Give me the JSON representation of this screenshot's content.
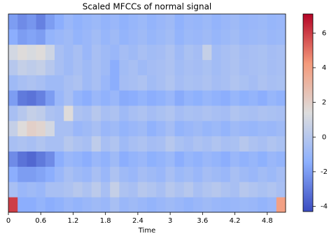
{
  "chart_data": {
    "type": "heatmap",
    "title": "Scaled MFCCs of normal signal",
    "x_label": "Time",
    "xlim": [
      0,
      5.14
    ],
    "xticks": [
      0,
      0.6,
      1.2,
      1.8,
      2.4,
      3,
      3.6,
      4.2,
      4.8
    ],
    "colormap": "coolwarm",
    "zlim": [
      -4.3,
      7.1
    ],
    "colorbar_ticks": [
      -4,
      -2,
      0,
      2,
      4,
      6
    ],
    "z": [
      [
        6,
        -1.5,
        -1.5,
        -1.2,
        -1.5,
        -1.3,
        -1,
        -1.2,
        -1,
        -0.8,
        -1,
        -0.5,
        -1,
        -0.8,
        -1,
        -1.2,
        -1,
        -0.8,
        -1,
        -1.2,
        -1,
        -0.8,
        -1,
        -1.1,
        -1,
        -0.9,
        -1,
        -1.2,
        -1,
        4
      ],
      [
        -0.5,
        -1,
        -0.8,
        -1,
        -0.5,
        -0.5,
        -0.3,
        0,
        -0.3,
        0.2,
        -0.5,
        0.5,
        -0.3,
        -0.5,
        0,
        -0.2,
        -0.5,
        0,
        -0.3,
        0,
        -0.5,
        -0.2,
        0,
        -0.3,
        -0.5,
        0,
        -0.2,
        -0.4,
        -0.2,
        -0.5
      ],
      [
        -1.5,
        -2,
        -2,
        -1.8,
        -1.5,
        -1,
        -0.5,
        -0.8,
        -1,
        -0.5,
        -1,
        -0.3,
        -0.8,
        -1,
        -0.6,
        -0.8,
        -1,
        -0.5,
        -0.9,
        -0.7,
        -1,
        -0.6,
        -0.8,
        -1,
        -0.5,
        -0.8,
        -1,
        -0.7,
        -0.9,
        -0.6
      ],
      [
        -2.5,
        -3.2,
        -3.5,
        -3,
        -2.5,
        -1.5,
        -1,
        -1.2,
        -1.5,
        -1,
        -1.3,
        -0.8,
        -1.5,
        -1.2,
        -1,
        -1.4,
        -1.2,
        -0.9,
        -1.5,
        -1.1,
        -1.3,
        -1,
        -1.2,
        -1.5,
        -1,
        -1.3,
        -1.1,
        -1.4,
        -1,
        -1.2
      ],
      [
        -0.5,
        -0.3,
        -0.5,
        -0.2,
        -0.5,
        -0.5,
        0,
        -0.3,
        -0.5,
        0.3,
        -0.5,
        -0.2,
        -0.8,
        -0.5,
        -0.3,
        -0.6,
        -0.5,
        0,
        -0.4,
        -0.6,
        -0.3,
        -0.5,
        -0.2,
        -0.5,
        -0.4,
        0,
        -0.3,
        -0.5,
        -0.2,
        -0.4
      ],
      [
        0.5,
        1.5,
        2,
        1.8,
        1,
        -0.5,
        -0.5,
        -1,
        -0.8,
        -0.5,
        -1,
        -0.8,
        -1.2,
        -1,
        -0.8,
        -1.3,
        -1,
        -0.6,
        -1.2,
        -1,
        -0.8,
        -1.1,
        -0.9,
        -1.2,
        -0.8,
        -1,
        -1.1,
        -0.9,
        -1,
        -0.8
      ],
      [
        -0.5,
        0,
        0.5,
        0.3,
        -0.3,
        -0.5,
        1.5,
        -0.3,
        -0.5,
        0,
        -0.5,
        -0.3,
        -0.8,
        -0.5,
        -0.3,
        -0.6,
        -0.4,
        -0.2,
        -0.6,
        -0.4,
        -0.5,
        -0.3,
        -0.5,
        -0.6,
        -0.2,
        -0.4,
        -0.5,
        -0.3,
        -0.4,
        -0.5
      ],
      [
        -2,
        -3,
        -3.2,
        -2.8,
        -2,
        -1,
        -0.5,
        -1.2,
        -1.5,
        -1,
        -1.3,
        -1,
        -1.6,
        -1.5,
        -1.2,
        -1.5,
        -1.3,
        -1,
        -1.6,
        -1.2,
        -1.4,
        -1.1,
        -1.3,
        -1.5,
        -1.1,
        -1.4,
        -1.2,
        -1.5,
        -1.1,
        -1.3
      ],
      [
        -0.8,
        -0.5,
        -0.3,
        -0.5,
        -0.8,
        -0.8,
        -0.5,
        -0.3,
        -0.8,
        -0.5,
        -1,
        -1.5,
        -0.6,
        -0.5,
        -0.3,
        -0.7,
        -0.5,
        -0.2,
        -0.6,
        -0.4,
        -0.5,
        -0.3,
        -0.6,
        -0.5,
        -0.2,
        -0.4,
        -0.6,
        -0.3,
        -0.5,
        -0.4
      ],
      [
        0,
        0.5,
        0.3,
        0.5,
        0,
        -0.5,
        -0.8,
        -0.5,
        -0.8,
        -0.5,
        -0.8,
        -1.5,
        -0.7,
        -0.5,
        -0.8,
        -0.6,
        -0.5,
        -0.3,
        -0.7,
        -0.5,
        -0.6,
        -0.4,
        -0.7,
        -0.5,
        -0.3,
        -0.6,
        -0.5,
        -0.4,
        -0.6,
        -0.5
      ],
      [
        1,
        1.5,
        1.2,
        1.5,
        0.8,
        -0.5,
        -0.8,
        -0.5,
        -1,
        -0.5,
        -0.8,
        -1,
        -0.6,
        -0.8,
        -0.5,
        -0.7,
        -0.6,
        -0.3,
        -0.8,
        -0.4,
        -0.6,
        0.5,
        -0.7,
        -0.5,
        -0.3,
        -0.6,
        -0.5,
        -0.4,
        -0.6,
        -0.5
      ],
      [
        -1.5,
        -2,
        -1.8,
        -2,
        -1.2,
        -1,
        -0.8,
        -1.2,
        -1,
        -0.7,
        -1.1,
        -0.8,
        -1.2,
        -1,
        -0.8,
        -1.1,
        -0.9,
        -0.7,
        -1.2,
        -0.9,
        -1,
        -0.8,
        -1.1,
        -0.9,
        -0.7,
        -1,
        -0.9,
        -0.8,
        -1,
        -0.9
      ],
      [
        -2,
        -2.5,
        -2.2,
        -2.8,
        -2,
        -1.5,
        -1,
        -1.3,
        -1.1,
        -0.9,
        -1.2,
        -1,
        -1.3,
        -1.1,
        -0.9,
        -1.2,
        -1,
        -0.8,
        -1.3,
        -1,
        -1.1,
        -0.9,
        -1.2,
        -1,
        -0.8,
        -1.1,
        -1,
        -0.9,
        -1.1,
        -1
      ]
    ]
  }
}
